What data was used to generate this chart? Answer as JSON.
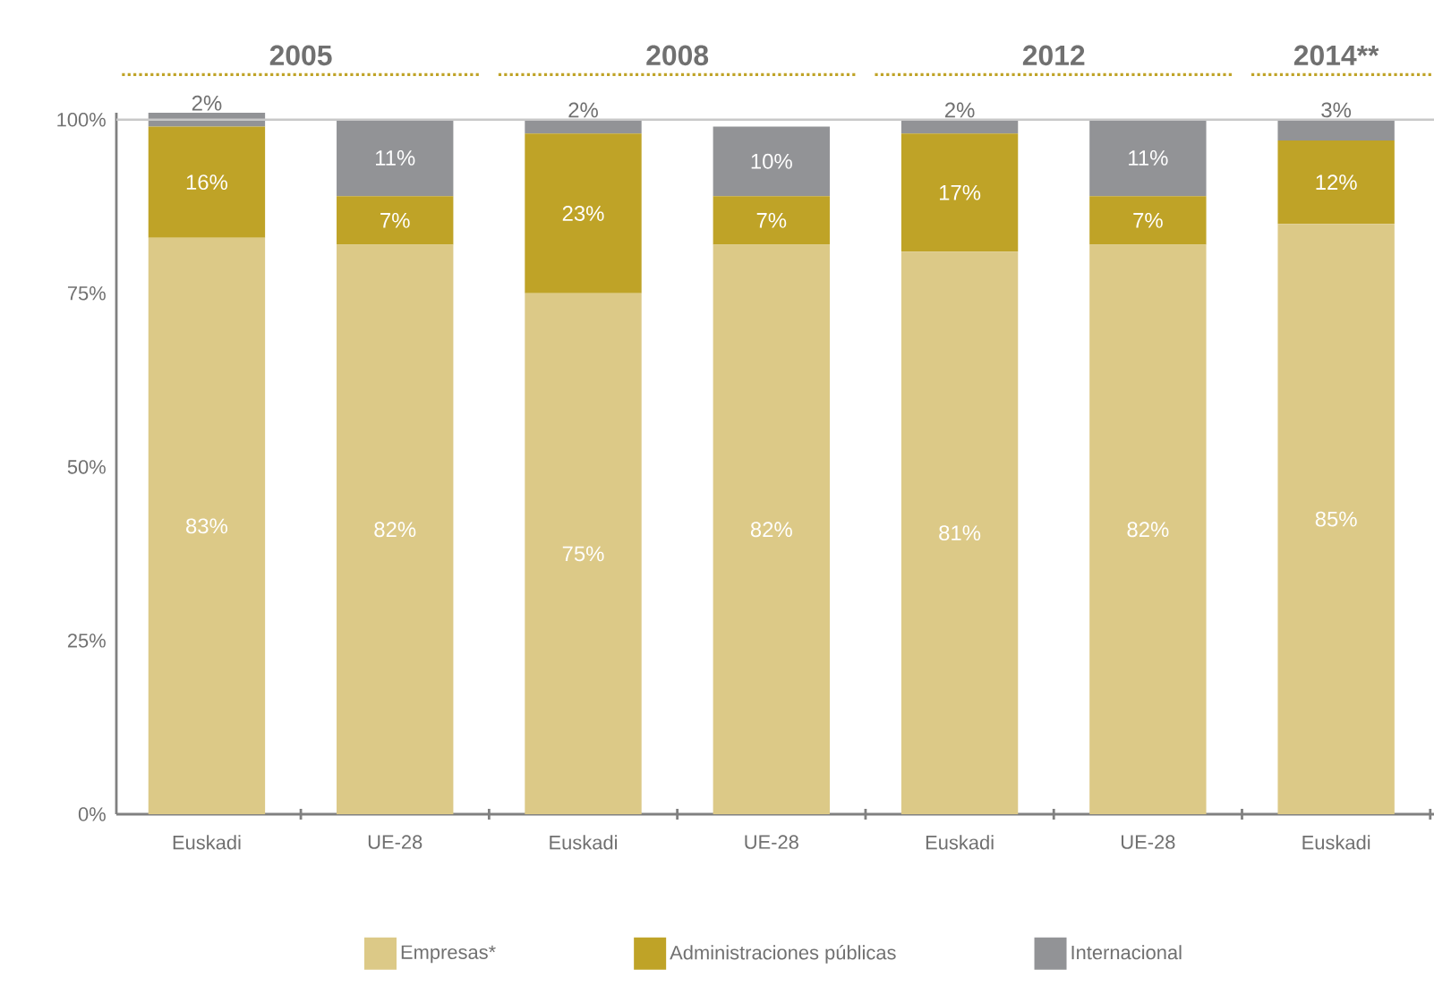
{
  "chart_data": {
    "type": "bar",
    "stacked": true,
    "categories": [
      "Euskadi",
      "UE-28",
      "Euskadi",
      "UE-28",
      "Euskadi",
      "UE-28",
      "Euskadi"
    ],
    "series": [
      {
        "name": "Empresas*",
        "color": "#dcc987",
        "values": [
          83,
          82,
          75,
          82,
          81,
          82,
          85
        ],
        "value_labels": [
          "83%",
          "82%",
          "75%",
          "82%",
          "81%",
          "82%",
          "85%"
        ]
      },
      {
        "name": "Administraciones públicas",
        "color": "#bfa327",
        "values": [
          16,
          7,
          23,
          7,
          17,
          7,
          12
        ],
        "value_labels": [
          "16%",
          "7%",
          "23%",
          "7%",
          "17%",
          "7%",
          "12%"
        ]
      },
      {
        "name": "Internacional",
        "color": "#929396",
        "values": [
          2,
          11,
          2,
          10,
          2,
          11,
          3
        ],
        "value_labels": [
          "2%",
          "11%",
          "2%",
          "10%",
          "2%",
          "11%",
          "3%"
        ]
      }
    ],
    "ylim": [
      0,
      101
    ],
    "yticks": [
      {
        "value": 0,
        "label": "0%"
      },
      {
        "value": 25,
        "label": "25%"
      },
      {
        "value": 50,
        "label": "50%"
      },
      {
        "value": 75,
        "label": "75%"
      },
      {
        "value": 100,
        "label": "100%"
      }
    ],
    "ref_lines": [
      {
        "axis": "y",
        "value": 100,
        "color": "#c8c8c8"
      }
    ],
    "annotations": [
      "2005",
      "2008",
      "2012",
      "2014**"
    ],
    "legend": "bottom"
  }
}
